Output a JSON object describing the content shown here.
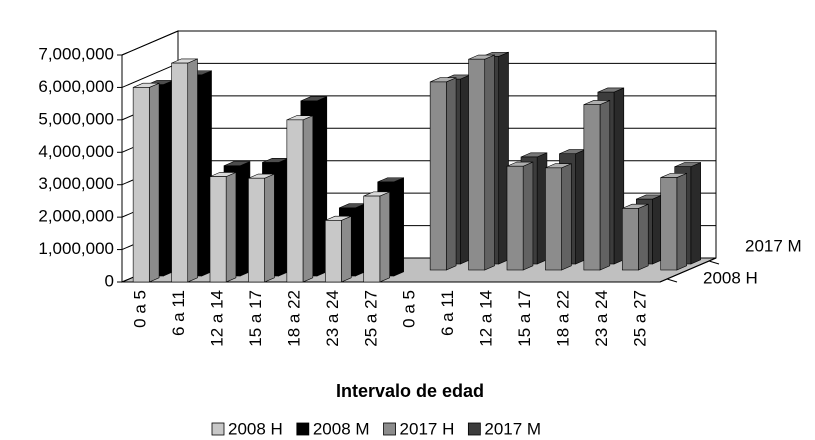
{
  "chart_data": {
    "type": "bar3d",
    "x_label": "Intervalo de edad",
    "categories": [
      "0 a 5",
      "6 a 11",
      "12 a 14",
      "15 a 17",
      "18 a 22",
      "23 a 24",
      "25 a 27",
      "0 a 5",
      "6 a 11",
      "12 a 14",
      "15 a 17",
      "18 a 22",
      "23 a 24",
      "25 a 27"
    ],
    "series": [
      {
        "name": "2008 H",
        "color": "#c8c8c8",
        "values": [
          6000000,
          6750000,
          3250000,
          3200000,
          5000000,
          1900000,
          2650000,
          null,
          null,
          null,
          null,
          null,
          null,
          null
        ]
      },
      {
        "name": "2008 M",
        "color": "#000000",
        "values": [
          5900000,
          6200000,
          3400000,
          3500000,
          5400000,
          2100000,
          2900000,
          null,
          null,
          null,
          null,
          null,
          null,
          null
        ]
      },
      {
        "name": "2017 H",
        "color": "#8c8c8c",
        "values": [
          null,
          null,
          null,
          null,
          null,
          null,
          null,
          5800000,
          6500000,
          3200000,
          3150000,
          5100000,
          1900000,
          2850000
        ]
      },
      {
        "name": "2017 M",
        "color": "#3c3c3c",
        "values": [
          null,
          null,
          null,
          null,
          null,
          null,
          null,
          5700000,
          6400000,
          3300000,
          3400000,
          5300000,
          2000000,
          3000000
        ]
      }
    ],
    "ylim": [
      0,
      7000000
    ],
    "yticks": [
      0,
      {
        "value": 1000000,
        "label": "1,000,000"
      },
      {
        "value": 2000000,
        "label": "2,000,000"
      },
      {
        "value": 3000000,
        "label": "3,000,000"
      },
      {
        "value": 4000000,
        "label": "4,000,000"
      },
      {
        "value": 5000000,
        "label": "5,000,000"
      },
      {
        "value": 6000000,
        "label": "6,000,000"
      },
      {
        "value": 7000000,
        "label": "7,000,000"
      }
    ],
    "grid": true
  }
}
